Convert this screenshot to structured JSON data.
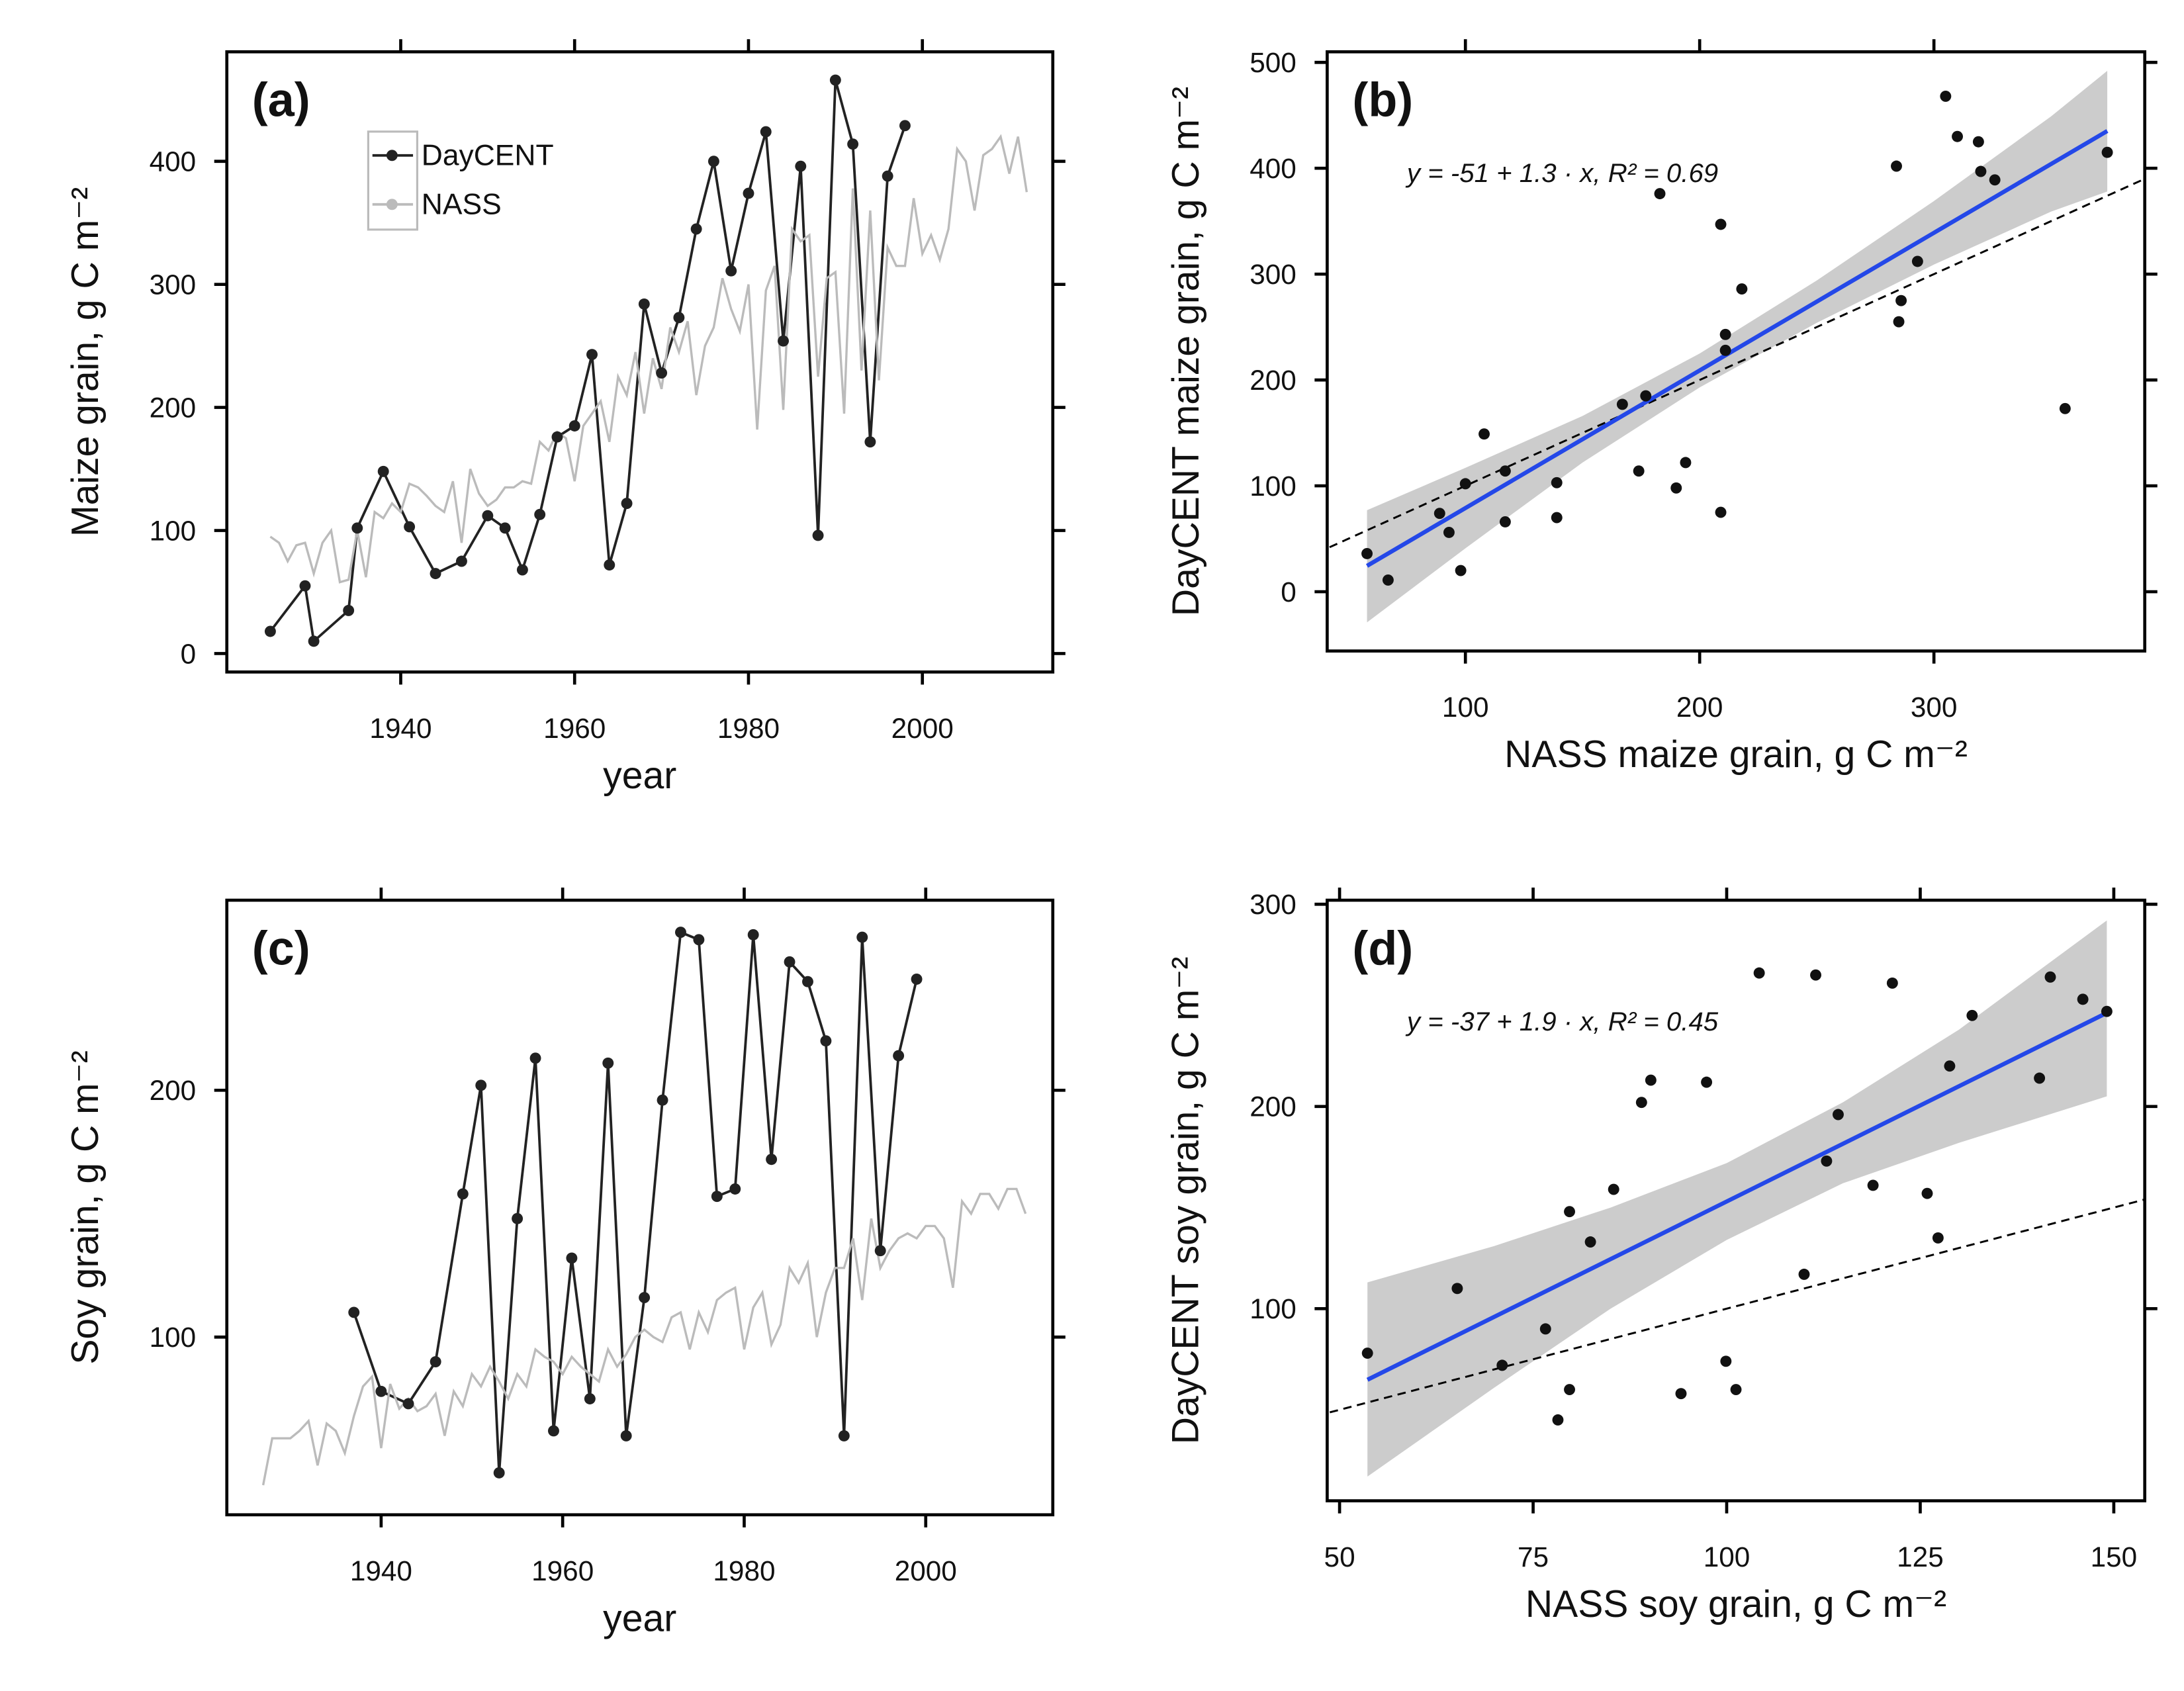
{
  "chart_data": [
    {
      "type": "line",
      "panel_label": "(a)",
      "xlabel": "year",
      "ylabel": "Maize grain, g C m⁻²",
      "xlim": [
        1920,
        2015
      ],
      "ylim": [
        -15,
        489
      ],
      "xticks": [
        1940,
        1960,
        1980,
        2000
      ],
      "yticks": [
        0,
        100,
        200,
        300,
        400
      ],
      "legend": "top-left",
      "series": [
        {
          "name": "DayCENT",
          "color": "#222222",
          "markers": true,
          "x": [
            1925,
            1929,
            1930,
            1934,
            1935,
            1938,
            1941,
            1944,
            1947,
            1950,
            1952,
            1954,
            1956,
            1958,
            1960,
            1962,
            1964,
            1966,
            1968,
            1970,
            1972,
            1974,
            1976,
            1978,
            1980,
            1982,
            1984,
            1986,
            1988,
            1990,
            1992,
            1994,
            1996,
            1998
          ],
          "values": [
            18,
            55,
            10,
            35,
            102,
            148,
            103,
            65,
            75,
            112,
            102,
            68,
            113,
            176,
            185,
            243,
            72,
            122,
            284,
            228,
            273,
            345,
            400,
            311,
            374,
            424,
            254,
            396,
            96,
            466,
            414,
            172,
            388,
            429
          ]
        },
        {
          "name": "NASS",
          "color": "#bbbbbb",
          "markers": false,
          "x": [
            1925,
            1926,
            1927,
            1928,
            1929,
            1930,
            1931,
            1932,
            1933,
            1934,
            1935,
            1936,
            1937,
            1938,
            1939,
            1940,
            1941,
            1942,
            1943,
            1944,
            1945,
            1946,
            1947,
            1948,
            1949,
            1950,
            1951,
            1952,
            1953,
            1954,
            1955,
            1956,
            1957,
            1958,
            1959,
            1960,
            1961,
            1962,
            1963,
            1964,
            1965,
            1966,
            1967,
            1968,
            1969,
            1970,
            1971,
            1972,
            1973,
            1974,
            1975,
            1976,
            1977,
            1978,
            1979,
            1980,
            1981,
            1982,
            1983,
            1984,
            1985,
            1986,
            1987,
            1988,
            1989,
            1990,
            1991,
            1992,
            1993,
            1994,
            1995,
            1996,
            1997,
            1998,
            1999,
            2000,
            2001,
            2002,
            2003,
            2004,
            2005,
            2006,
            2007,
            2008,
            2009,
            2010,
            2011,
            2012
          ],
          "values": [
            95,
            90,
            75,
            88,
            90,
            65,
            90,
            100,
            58,
            60,
            100,
            62,
            115,
            110,
            122,
            115,
            138,
            135,
            128,
            120,
            115,
            140,
            90,
            150,
            130,
            120,
            125,
            135,
            135,
            140,
            138,
            172,
            165,
            180,
            175,
            140,
            185,
            195,
            205,
            172,
            225,
            210,
            245,
            195,
            240,
            215,
            265,
            245,
            270,
            210,
            250,
            265,
            305,
            280,
            262,
            300,
            182,
            295,
            315,
            198,
            345,
            335,
            340,
            225,
            305,
            310,
            195,
            378,
            230,
            360,
            222,
            330,
            315,
            315,
            370,
            325,
            340,
            320,
            345,
            410,
            400,
            360,
            405,
            410,
            420,
            390,
            420,
            375
          ]
        }
      ]
    },
    {
      "type": "scatter",
      "panel_label": "(b)",
      "xlabel": "NASS maize grain, g C m⁻²",
      "ylabel": "DayCENT maize grain, g C m⁻²",
      "xlim": [
        41,
        390
      ],
      "ylim": [
        -56,
        510
      ],
      "xticks": [
        100,
        200,
        300
      ],
      "yticks": [
        0,
        100,
        200,
        300,
        400,
        500
      ],
      "color": "#111111",
      "identity_line": true,
      "x": [
        58,
        67,
        89,
        93,
        98,
        100,
        108,
        117,
        117,
        139,
        139,
        167,
        177,
        174,
        183,
        190,
        194,
        209,
        209,
        211,
        211,
        218,
        284,
        285,
        286,
        293,
        305,
        310,
        319,
        320,
        326,
        356,
        374
      ],
      "values": [
        36,
        11,
        74,
        56,
        20,
        102,
        149,
        114,
        66,
        103,
        70,
        177,
        185,
        114,
        376,
        98,
        122,
        75,
        347,
        228,
        243,
        286,
        402,
        255,
        275,
        312,
        468,
        430,
        425,
        397,
        389,
        173,
        415
      ],
      "fit": {
        "intercept": -51,
        "slope": 1.3,
        "color": "#2448e8"
      },
      "ci": {
        "color": "#cccccc",
        "x": [
          58,
          100,
          150,
          200,
          250,
          300,
          350,
          374
        ],
        "lower": [
          -29,
          41,
          122,
          193,
          254,
          309,
          359,
          378
        ],
        "upper": [
          77,
          117,
          166,
          225,
          294,
          369,
          449,
          492
        ]
      },
      "annotation": "y = -51 + 1.3 · x,  R² = 0.69"
    },
    {
      "type": "line",
      "panel_label": "(c)",
      "xlabel": "year",
      "ylabel": "Soy grain, g C m⁻²",
      "xlim": [
        1923,
        2014
      ],
      "ylim": [
        28,
        277
      ],
      "xticks": [
        1940,
        1960,
        1980,
        2000
      ],
      "yticks": [
        100,
        200
      ],
      "series": [
        {
          "color": "#222222",
          "markers": true,
          "x": [
            1937,
            1940,
            1943,
            1946,
            1949,
            1951,
            1953,
            1955,
            1957,
            1959,
            1961,
            1963,
            1965,
            1967,
            1969,
            1971,
            1973,
            1975,
            1977,
            1979,
            1981,
            1983,
            1985,
            1987,
            1989,
            1991,
            1993,
            1995,
            1997,
            1999
          ],
          "values": [
            110,
            78,
            73,
            90,
            158,
            202,
            45,
            148,
            213,
            62,
            132,
            75,
            211,
            60,
            116,
            196,
            264,
            261,
            157,
            160,
            263,
            172,
            252,
            244,
            220,
            60,
            262,
            135,
            214,
            245
          ]
        },
        {
          "color": "#bbbbbb",
          "markers": false,
          "x": [
            1927,
            1928,
            1929,
            1930,
            1931,
            1932,
            1933,
            1934,
            1935,
            1936,
            1937,
            1938,
            1939,
            1940,
            1941,
            1942,
            1943,
            1944,
            1945,
            1946,
            1947,
            1948,
            1949,
            1950,
            1951,
            1952,
            1953,
            1954,
            1955,
            1956,
            1957,
            1958,
            1959,
            1960,
            1961,
            1962,
            1963,
            1964,
            1965,
            1966,
            1967,
            1968,
            1969,
            1970,
            1971,
            1972,
            1973,
            1974,
            1975,
            1976,
            1977,
            1978,
            1979,
            1980,
            1981,
            1982,
            1983,
            1984,
            1985,
            1986,
            1987,
            1988,
            1989,
            1990,
            1991,
            1992,
            1993,
            1994,
            1995,
            1996,
            1997,
            1998,
            1999,
            2000,
            2001,
            2002,
            2003,
            2004,
            2005,
            2006,
            2007,
            2008,
            2009,
            2010,
            2011
          ],
          "values": [
            40,
            59,
            59,
            59,
            62,
            66,
            48,
            65,
            62,
            53,
            68,
            80,
            84,
            55,
            81,
            71,
            75,
            70,
            72,
            77,
            60,
            78,
            72,
            85,
            80,
            88,
            82,
            75,
            85,
            80,
            95,
            92,
            90,
            85,
            92,
            88,
            85,
            82,
            95,
            88,
            93,
            100,
            103,
            100,
            98,
            108,
            110,
            95,
            110,
            102,
            115,
            118,
            120,
            95,
            112,
            118,
            97,
            105,
            128,
            122,
            130,
            100,
            118,
            128,
            128,
            140,
            115,
            148,
            128,
            135,
            140,
            142,
            140,
            145,
            145,
            140,
            120,
            155,
            150,
            158,
            158,
            152,
            160,
            160,
            150
          ]
        }
      ]
    },
    {
      "type": "scatter",
      "panel_label": "(d)",
      "xlabel": "NASS soy grain, g C m⁻²",
      "ylabel": "DayCENT soy grain, g C m⁻²",
      "xlim": [
        48.4,
        154
      ],
      "ylim": [
        5,
        302
      ],
      "xticks": [
        50,
        75,
        100,
        125,
        150
      ],
      "yticks": [
        100,
        200,
        300
      ],
      "color": "#111111",
      "identity_line": true,
      "x": [
        53.6,
        65.2,
        71,
        76.6,
        79.7,
        78.2,
        79.7,
        82.4,
        85.4,
        89,
        90.2,
        97.4,
        94.1,
        99.9,
        101.2,
        104.2,
        111.5,
        110,
        112.9,
        114.4,
        118.9,
        121.4,
        125.9,
        127.3,
        128.8,
        131.7,
        140.4,
        141.8,
        146,
        149.1
      ],
      "values": [
        78,
        110,
        72,
        90,
        60,
        45,
        148,
        133,
        159,
        202,
        213,
        212,
        58,
        74,
        60,
        266,
        265,
        117,
        173,
        196,
        161,
        261,
        157,
        135,
        220,
        245,
        214,
        264,
        253,
        247
      ],
      "fit": {
        "intercept": -37,
        "slope": 1.9,
        "color": "#2448e8"
      },
      "ci": {
        "color": "#cccccc",
        "x": [
          53.6,
          70,
          85,
          100,
          115,
          130,
          149.1
        ],
        "lower": [
          17,
          61,
          100,
          134,
          162,
          182,
          205
        ],
        "upper": [
          113,
          131,
          150,
          172,
          202,
          238,
          292
        ]
      },
      "annotation": "y = -37 + 1.9 · x,  R² = 0.45"
    }
  ]
}
